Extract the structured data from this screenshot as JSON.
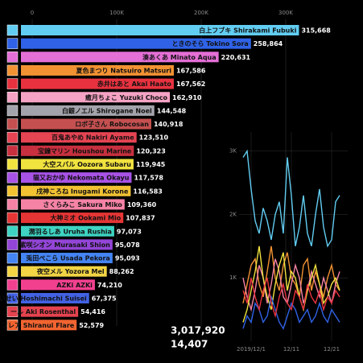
{
  "chart_data": [
    {
      "type": "barh",
      "xlim": [
        0,
        380000
      ],
      "xticks": [
        0,
        {
          "value": 100000,
          "label": "100K"
        },
        {
          "value": 200000,
          "label": "200K"
        },
        {
          "value": 300000,
          "label": "300K"
        }
      ],
      "grid": true,
      "categories": [
        "白上フブキ Shirakami Fubuki",
        "ときのそら Tokino Sora",
        "湊あくあ Minato Aqua",
        "夏色まつり Natsuiro Matsuri",
        "赤井はあと Akai Haato",
        "癒月ちょこ Yuzuki Choco",
        "白銀ノエル Shirogane Noel",
        "ロボ子さん Robocosan",
        "百鬼あやめ Nakiri Ayame",
        "宝鐘マリン Houshou Marine",
        "大空スバル Oozora Subaru",
        "猫又おかゆ Nekomata Okayu",
        "戌神ころね Inugami Korone",
        "さくらみこ Sakura Miko",
        "大神ミオ Ookami Mio",
        "潤羽るしあ Uruha Rushia",
        "紫咲シオン Murasaki Shion",
        "兎田ぺこら Usada Pekora",
        "夜空メル Yozora Mel",
        "AZKi AZKi",
        "いせい Hoshimachi Suisei",
        "ール Aki Rosenthal",
        "フレア Shiranui Flare"
      ],
      "values": [
        315668,
        258864,
        220631,
        167586,
        167562,
        162910,
        144548,
        140918,
        123510,
        120323,
        119945,
        117578,
        116583,
        109360,
        107837,
        97073,
        95078,
        95093,
        88262,
        74210,
        67375,
        54416,
        52579
      ],
      "value_labels": [
        "315,668",
        "258,864",
        "220,631",
        "167,586",
        "167,562",
        "162,910",
        "144,548",
        "140,918",
        "123,510",
        "120,323",
        "119,945",
        "117,578",
        "116,583",
        "109,360",
        "107,837",
        "97,073",
        "95,078",
        "95,093",
        "88,262",
        "74,210",
        "67,375",
        "54,416",
        "52,579"
      ],
      "colors": [
        "#62cdf2",
        "#2f62e6",
        "#e46fd6",
        "#f29233",
        "#e8323f",
        "#f5a3c4",
        "#a3a3ab",
        "#c55050",
        "#e54453",
        "#c8303f",
        "#f1e33f",
        "#a852e6",
        "#f2c233",
        "#f583a5",
        "#e53535",
        "#3ed3c2",
        "#9245d6",
        "#4484f3",
        "#f2d444",
        "#f2408f",
        "#4262e3",
        "#e5434f",
        "#f26430"
      ],
      "totals": [
        "3,017,920",
        "14,407"
      ]
    },
    {
      "type": "line",
      "xlim": [
        -3,
        24
      ],
      "ylim": [
        0,
        3300
      ],
      "xticks": [
        {
          "value": 0,
          "label": "2019/12/1"
        },
        {
          "value": 10,
          "label": "12/11"
        },
        {
          "value": 20,
          "label": "12/21"
        }
      ],
      "yticks": [
        {
          "value": 1000,
          "label": "1K"
        },
        {
          "value": 2000,
          "label": "2K"
        },
        {
          "value": 3000,
          "label": "3K"
        }
      ],
      "x": [
        -2,
        -1,
        0,
        1,
        2,
        3,
        4,
        5,
        6,
        7,
        8,
        9,
        10,
        11,
        12,
        13,
        14,
        15,
        16,
        17,
        18,
        19,
        20,
        21,
        22
      ],
      "series": [
        {
          "color": "#62cdf2",
          "values": [
            2900,
            3000,
            2400,
            1900,
            1700,
            2100,
            1900,
            1600,
            2000,
            2200,
            1700,
            2900,
            2300,
            1500,
            1800,
            2300,
            1700,
            1500,
            2000,
            2400,
            1800,
            1500,
            1600,
            2200,
            2300
          ]
        },
        {
          "color": "#f29233",
          "values": [
            600,
            900,
            1200,
            1300,
            900,
            700,
            1100,
            1500,
            1000,
            800,
            1200,
            1400,
            1000,
            900,
            700,
            1200,
            1300,
            800,
            1100,
            900,
            700,
            1000,
            1200,
            900,
            800
          ]
        },
        {
          "color": "#f583a5",
          "values": [
            1000,
            700,
            500,
            800,
            1200,
            1000,
            600,
            900,
            1300,
            1100,
            700,
            600,
            900,
            1200,
            1000,
            600,
            800,
            1100,
            900,
            700,
            1000,
            800,
            600,
            900,
            1100
          ]
        },
        {
          "color": "#f1e33f",
          "values": [
            300,
            500,
            800,
            1100,
            1500,
            1000,
            700,
            500,
            900,
            1200,
            1400,
            800,
            1100,
            1000,
            700,
            500,
            800,
            1000,
            1200,
            900,
            600,
            700,
            900,
            1000,
            800
          ]
        },
        {
          "color": "#2f62e6",
          "values": [
            200,
            400,
            300,
            600,
            500,
            300,
            400,
            700,
            500,
            300,
            200,
            400,
            600,
            500,
            300,
            400,
            500,
            300,
            400,
            600,
            400,
            300,
            500,
            400,
            300
          ]
        },
        {
          "color": "#e8323f",
          "values": [
            800,
            600,
            1000,
            700,
            500,
            800,
            1000,
            600,
            400,
            700,
            900,
            600,
            500,
            800,
            700,
            500,
            900,
            700,
            600,
            800,
            500,
            700,
            600,
            800,
            700
          ]
        }
      ]
    }
  ]
}
